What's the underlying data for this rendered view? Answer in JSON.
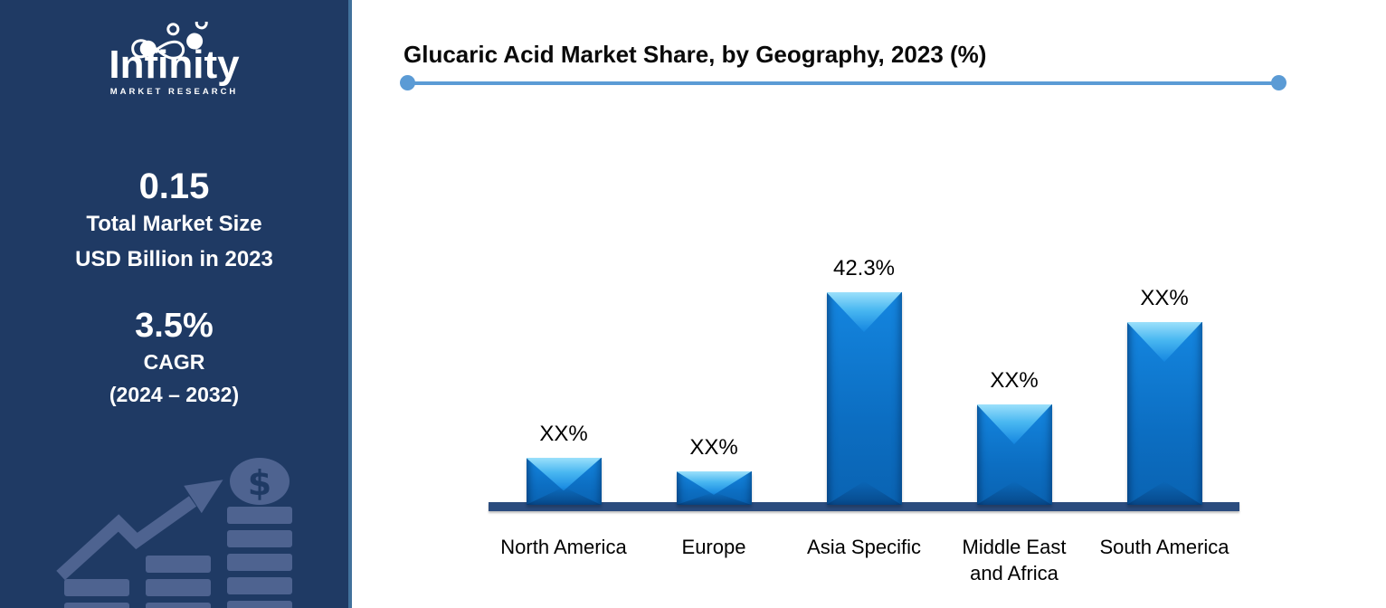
{
  "sidebar": {
    "logo": {
      "brand": "Infinity",
      "tagline": "MARKET RESEARCH",
      "icon": "infinity-loop-icon"
    },
    "market_size": {
      "value": "0.15",
      "line1": "Total Market Size",
      "line2": "USD Billion in 2023"
    },
    "cagr": {
      "value": "3.5%",
      "label": "CAGR",
      "period": "(2024 – 2032)"
    },
    "deco": {
      "icons": [
        "trend-up-arrow-icon",
        "dollar-coin-icon",
        "coin-stacks-icon"
      ],
      "coin_symbol": "$"
    }
  },
  "chart_data": {
    "type": "bar",
    "title": "Glucaric Acid Market Share, by Geography, 2023 (%)",
    "categories": [
      "North America",
      "Europe",
      "Asia Specific",
      "Middle East and Africa",
      "South America"
    ],
    "labels": [
      "XX%",
      "XX%",
      "42.3%",
      "XX%",
      "XX%"
    ],
    "values": [
      9.4,
      6.7,
      42.3,
      20.0,
      36.4
    ],
    "values_estimated_from_bar_heights": [
      true,
      true,
      false,
      true,
      true
    ],
    "xlabel": "",
    "ylabel": "",
    "ylim": [
      0,
      45
    ],
    "grid": false,
    "legend": false
  },
  "colors": {
    "sidebar_bg": "#1f3a64",
    "sidebar_accent": "#4e6390",
    "sidebar_border": "#41719c",
    "divider": "#5b9bd5",
    "bar_main": "#0f7ad2",
    "bar_highlight": "#7fd4f9",
    "axis": "#2b4c7e",
    "text_light": "#ffffff",
    "text_dark": "#000000"
  }
}
